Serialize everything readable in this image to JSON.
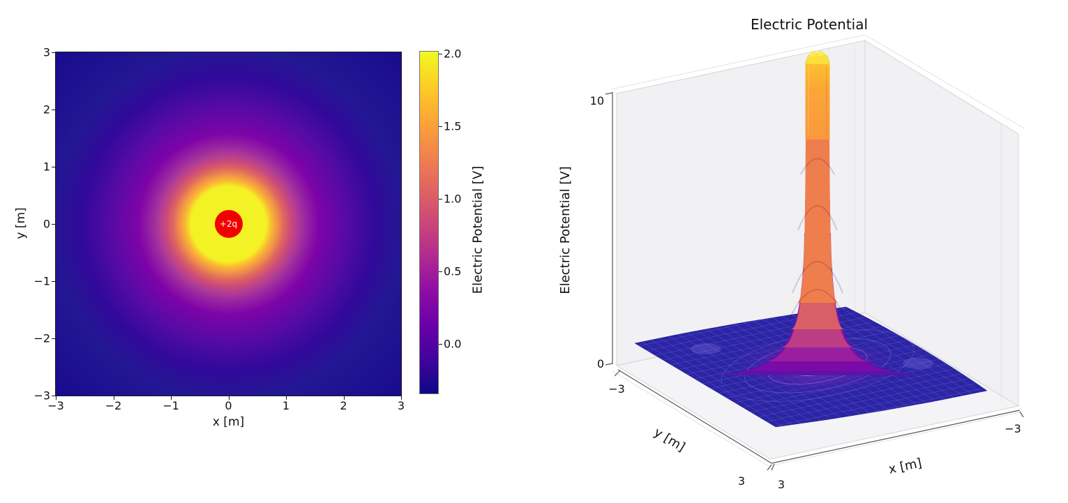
{
  "left_plot": {
    "xlabel": "x [m]",
    "ylabel": "y [m]",
    "xtick_labels": [
      "−3",
      "−2",
      "−1",
      "0",
      "1",
      "2",
      "3"
    ],
    "ytick_labels": [
      "3",
      "2",
      "1",
      "0",
      "−1",
      "−2",
      "−3"
    ],
    "charge_label": "+2q",
    "colorbar": {
      "label": "Electric Potential [V]",
      "tick_labels": [
        "2.0",
        "1.5",
        "1.0",
        "0.5",
        "0.0"
      ]
    }
  },
  "right_plot": {
    "title": "Electric Potential",
    "xlabel": "x [m]",
    "ylabel": "y [m]",
    "zlabel": "Electric Potential [V]",
    "xtick_labels": [
      "3",
      "−3"
    ],
    "ytick_labels": [
      "−3",
      "3"
    ],
    "ztick_labels": [
      "0",
      "10"
    ]
  },
  "colors": {
    "charge_marker": "#f20000",
    "plasma_stops": [
      "#0d0887",
      "#41049d",
      "#6a00a8",
      "#8f0da4",
      "#b12a90",
      "#cc4778",
      "#e16462",
      "#f2844b",
      "#fca636",
      "#fcce25",
      "#f0f921"
    ],
    "surface_base": "#2b24a6",
    "spike_column": "#fba636",
    "spike_cap": "#f8e13b"
  },
  "chart_data": [
    {
      "id": "potential-heatmap-2d",
      "type": "heatmap",
      "xlabel": "x [m]",
      "ylabel": "y [m]",
      "xlim": [
        -3,
        3
      ],
      "ylim": [
        -3,
        3
      ],
      "xticks": [
        -3,
        -2,
        -1,
        0,
        1,
        2,
        3
      ],
      "yticks": [
        -3,
        -2,
        -1,
        0,
        1,
        2,
        3
      ],
      "colormap": "plasma",
      "colorbar": {
        "label": "Electric Potential [V]",
        "ticks": [
          0.0,
          0.5,
          1.0,
          1.5,
          2.0
        ],
        "vmin": -0.34,
        "vmax": 2.0
      },
      "charge": {
        "label": "+2q",
        "x": 0,
        "y": 0
      },
      "field_description": "Electric potential of a single +2q point charge at the origin; radially symmetric, saturated at vmax=2.0 V inside r≈0.7 m",
      "radial_profile_V_vs_r_m": [
        {
          "r": 0.0,
          "V": 2.0
        },
        {
          "r": 0.7,
          "V": 2.0
        },
        {
          "r": 1.0,
          "V": 1.35
        },
        {
          "r": 1.5,
          "V": 0.6
        },
        {
          "r": 2.0,
          "V": 0.12
        },
        {
          "r": 2.5,
          "V": -0.12
        },
        {
          "r": 3.0,
          "V": -0.24
        },
        {
          "r": 4.24,
          "V": -0.33
        }
      ]
    },
    {
      "id": "potential-surface-3d",
      "type": "surface",
      "title": "Electric Potential",
      "xlabel": "x [m]",
      "ylabel": "y [m]",
      "zlabel": "Electric Potential [V]",
      "xlim": [
        -3,
        3
      ],
      "ylim": [
        -3,
        3
      ],
      "zlim": [
        0,
        10
      ],
      "xticks": [
        -3,
        3
      ],
      "yticks": [
        -3,
        3
      ],
      "zticks": [
        0,
        10
      ],
      "colormap": "plasma",
      "peak": {
        "x": 0,
        "y": 0,
        "clipped_above_zlim": true,
        "note": "central spike exceeds z-axis top (column truncated with flat cap)"
      },
      "baseline": "surface ≈ 0 V far from origin (flat dark-blue sheet over most of the domain)",
      "view": {
        "elev_deg": 30,
        "azim_deg": -60
      }
    }
  ]
}
